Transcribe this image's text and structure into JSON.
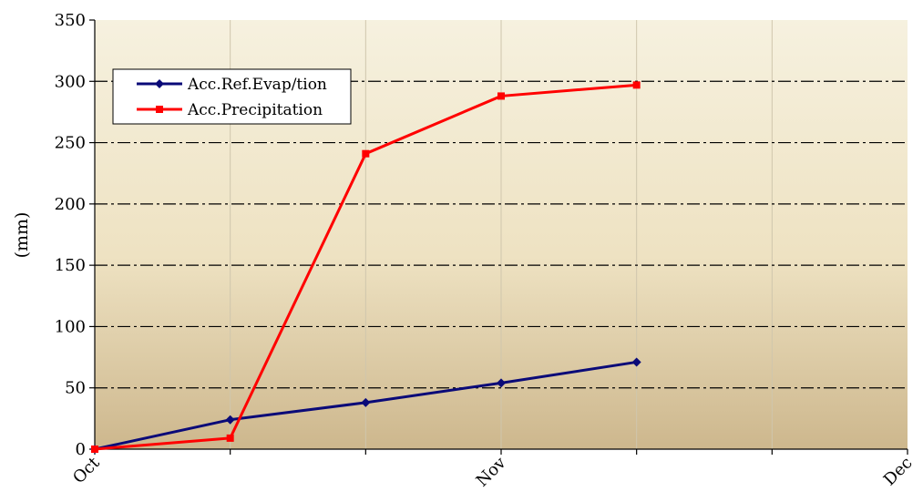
{
  "chart_data": {
    "type": "line",
    "title": "",
    "xlabel": "",
    "ylabel": "(mm)",
    "x_tick_labels": [
      "Oct",
      "Nov",
      "Dec"
    ],
    "x": [
      0,
      1,
      2,
      3,
      4
    ],
    "ylim": [
      0,
      350
    ],
    "yticks": [
      0,
      50,
      100,
      150,
      200,
      250,
      300,
      350
    ],
    "grid": true,
    "legend_position": "top-left",
    "series": [
      {
        "name": "Acc.Ref.Evap/tion",
        "color": "#0a0a78",
        "marker": "diamond",
        "values": [
          0,
          24,
          38,
          54,
          71
        ]
      },
      {
        "name": "Acc.Precipitation",
        "color": "#ff0000",
        "marker": "square",
        "values": [
          0,
          9,
          241,
          288,
          297
        ]
      }
    ]
  }
}
